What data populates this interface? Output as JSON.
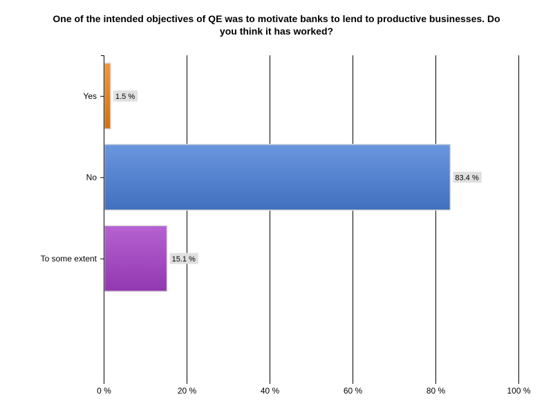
{
  "chart_data": {
    "type": "bar",
    "orientation": "horizontal",
    "title": "One of the intended objectives of QE was to motivate banks to lend to productive businesses. Do you think it has worked?",
    "title_lines": [
      "One of the intended objectives of QE was to motivate banks to lend to productive businesses. Do",
      "you think it has worked?"
    ],
    "categories": [
      "Yes",
      "No",
      "To some extent"
    ],
    "values": [
      1.5,
      83.4,
      15.1
    ],
    "data_labels": [
      "1.5 %",
      "83.4 %",
      "15.1 %"
    ],
    "colors": [
      "#f07f10",
      "#4a7fd8",
      "#a63fc8"
    ],
    "xlim": [
      0,
      100
    ],
    "x_ticks": [
      0,
      20,
      40,
      60,
      80,
      100
    ],
    "x_tick_labels": [
      "0 %",
      "20 %",
      "40 %",
      "60 %",
      "80 %",
      "100 %"
    ],
    "grid": true,
    "legend": "none"
  }
}
